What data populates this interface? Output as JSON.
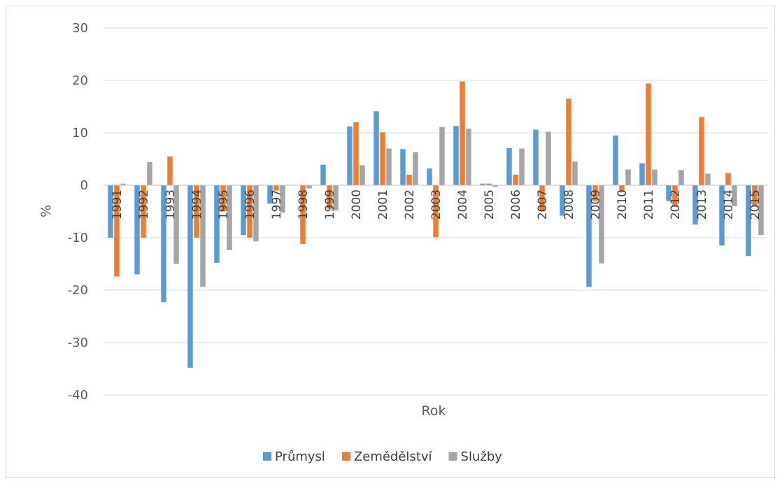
{
  "chart_data": {
    "type": "bar",
    "title": "",
    "xlabel": "Rok",
    "ylabel": "%",
    "ylim": [
      -40,
      30
    ],
    "yticks": [
      30,
      20,
      10,
      0,
      -10,
      -20,
      -30,
      -40
    ],
    "grid": true,
    "legend_position": "bottom",
    "categories": [
      "1991",
      "1992",
      "1993",
      "1994",
      "1995",
      "1996",
      "1997",
      "1998",
      "1999",
      "2000",
      "2001",
      "2002",
      "2003",
      "2004",
      "2005",
      "2006",
      "2007",
      "2008",
      "2009",
      "2010",
      "2011",
      "2012",
      "2013",
      "2014",
      "2015"
    ],
    "series": [
      {
        "name": "Průmysl",
        "color": "#5b9bd5",
        "values": [
          -10,
          -17,
          -22.3,
          -34.8,
          -14.8,
          -9.5,
          -3.5,
          0,
          3.9,
          11.2,
          14.1,
          6.9,
          3.2,
          11.3,
          0.3,
          7.1,
          10.6,
          -5.8,
          -19.4,
          9.5,
          4.2,
          -3,
          -7.5,
          -11.5,
          -13.5
        ]
      },
      {
        "name": "Zemědělství",
        "color": "#ed7d31",
        "values": [
          -17.4,
          -10,
          5.5,
          -10,
          -5,
          -10,
          -1,
          -11.2,
          -4.5,
          12,
          10.1,
          2,
          -9.9,
          19.8,
          0.3,
          2,
          -5,
          16.5,
          -3,
          -1.3,
          19.4,
          -4,
          13,
          2.3,
          -4
        ]
      },
      {
        "name": "Služby",
        "color": "#a5a5a5",
        "values": [
          0.3,
          4.4,
          -15,
          -19.4,
          -12.4,
          -10.7,
          -5.2,
          -0.6,
          -4.8,
          3.8,
          7,
          6.3,
          11.1,
          10.8,
          -0.3,
          7,
          10.2,
          4.5,
          -14.9,
          3,
          3,
          2.9,
          2.2,
          -4,
          -9.5
        ]
      }
    ]
  }
}
